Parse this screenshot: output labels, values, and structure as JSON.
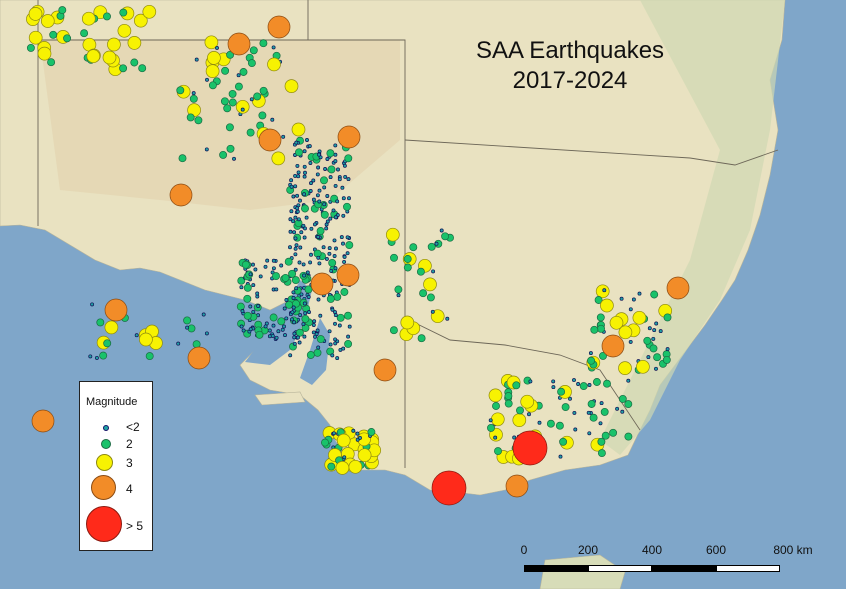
{
  "map": {
    "title_lines": [
      "SAA Earthquakes",
      "2017-2024"
    ],
    "colors": {
      "sea": "#7fa6c9",
      "land": "#ece5c4",
      "border": "#6d6758",
      "mag1": "#1fa0a4",
      "mag2": "#19c26a",
      "mag3": "#f7f202",
      "mag4": "#f28c28",
      "mag5": "#ff2a1a"
    }
  },
  "legend": {
    "title": "Magnitude",
    "items": [
      {
        "label": "<2",
        "class": "mag1"
      },
      {
        "label": "2",
        "class": "mag2"
      },
      {
        "label": "3",
        "class": "mag3"
      },
      {
        "label": "4",
        "class": "mag4"
      },
      {
        "label": "> 5",
        "class": "mag5"
      }
    ]
  },
  "scale": {
    "ticks": [
      "0",
      "200",
      "400",
      "600",
      "800 km"
    ]
  }
}
